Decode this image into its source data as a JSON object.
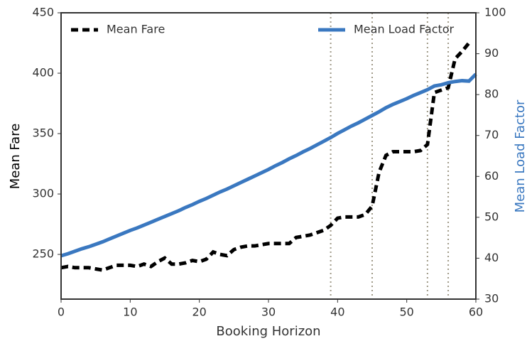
{
  "chart_data": {
    "type": "line",
    "x_label": "Booking Horizon",
    "y_label": "Mean Fare",
    "y2_label": "Mean Load Factor",
    "y2_label_color": "#3a78c0",
    "x": [
      0,
      1,
      2,
      3,
      4,
      5,
      6,
      7,
      8,
      9,
      10,
      11,
      12,
      13,
      14,
      15,
      16,
      17,
      18,
      19,
      20,
      21,
      22,
      23,
      24,
      25,
      26,
      27,
      28,
      29,
      30,
      31,
      32,
      33,
      34,
      35,
      36,
      37,
      38,
      39,
      40,
      41,
      42,
      43,
      44,
      45,
      46,
      47,
      48,
      49,
      50,
      51,
      52,
      53,
      54,
      55,
      56,
      57,
      58,
      59,
      60
    ],
    "xlim": [
      0,
      60
    ],
    "xticks": [
      0,
      10,
      20,
      30,
      40,
      50,
      60
    ],
    "ylim": [
      213,
      450
    ],
    "yticks": [
      250,
      300,
      350,
      400,
      450
    ],
    "y2lim": [
      30,
      100
    ],
    "y2ticks": [
      30,
      40,
      50,
      60,
      70,
      80,
      90,
      100
    ],
    "vlines": [
      39,
      45,
      53,
      56
    ],
    "series": [
      {
        "name": "Mean Fare",
        "color": "#000000",
        "dash": true,
        "legend": "upper left",
        "values": [
          239,
          240,
          239,
          239,
          239,
          238,
          237,
          239,
          241,
          241,
          241,
          240,
          242,
          240,
          244,
          247,
          242,
          242,
          243,
          245,
          244,
          246,
          252,
          250,
          249,
          254,
          256,
          257,
          257,
          258,
          259,
          259,
          259,
          259,
          264,
          265,
          266,
          268,
          270,
          274,
          280,
          281,
          281,
          281,
          283,
          290,
          318,
          332,
          335,
          335,
          335,
          335,
          336,
          341,
          384,
          386,
          388,
          412,
          418,
          425,
          null
        ]
      },
      {
        "name": "Mean Load Factor",
        "color": "#3a78c0",
        "dash": false,
        "axis": "y2",
        "legend": "upper right",
        "values": [
          40.6,
          41.1,
          41.7,
          42.3,
          42.8,
          43.4,
          44.0,
          44.7,
          45.4,
          46.1,
          46.8,
          47.4,
          48.1,
          48.8,
          49.5,
          50.2,
          50.9,
          51.6,
          52.4,
          53.1,
          53.9,
          54.6,
          55.4,
          56.2,
          56.9,
          57.7,
          58.5,
          59.3,
          60.1,
          60.9,
          61.7,
          62.6,
          63.4,
          64.3,
          65.1,
          66.0,
          66.8,
          67.7,
          68.6,
          69.5,
          70.5,
          71.4,
          72.3,
          73.1,
          74.0,
          74.9,
          75.8,
          76.8,
          77.6,
          78.3,
          79.0,
          79.8,
          80.5,
          81.2,
          82.1,
          82.4,
          82.9,
          83.2,
          83.4,
          83.3,
          85.0
        ]
      }
    ]
  }
}
